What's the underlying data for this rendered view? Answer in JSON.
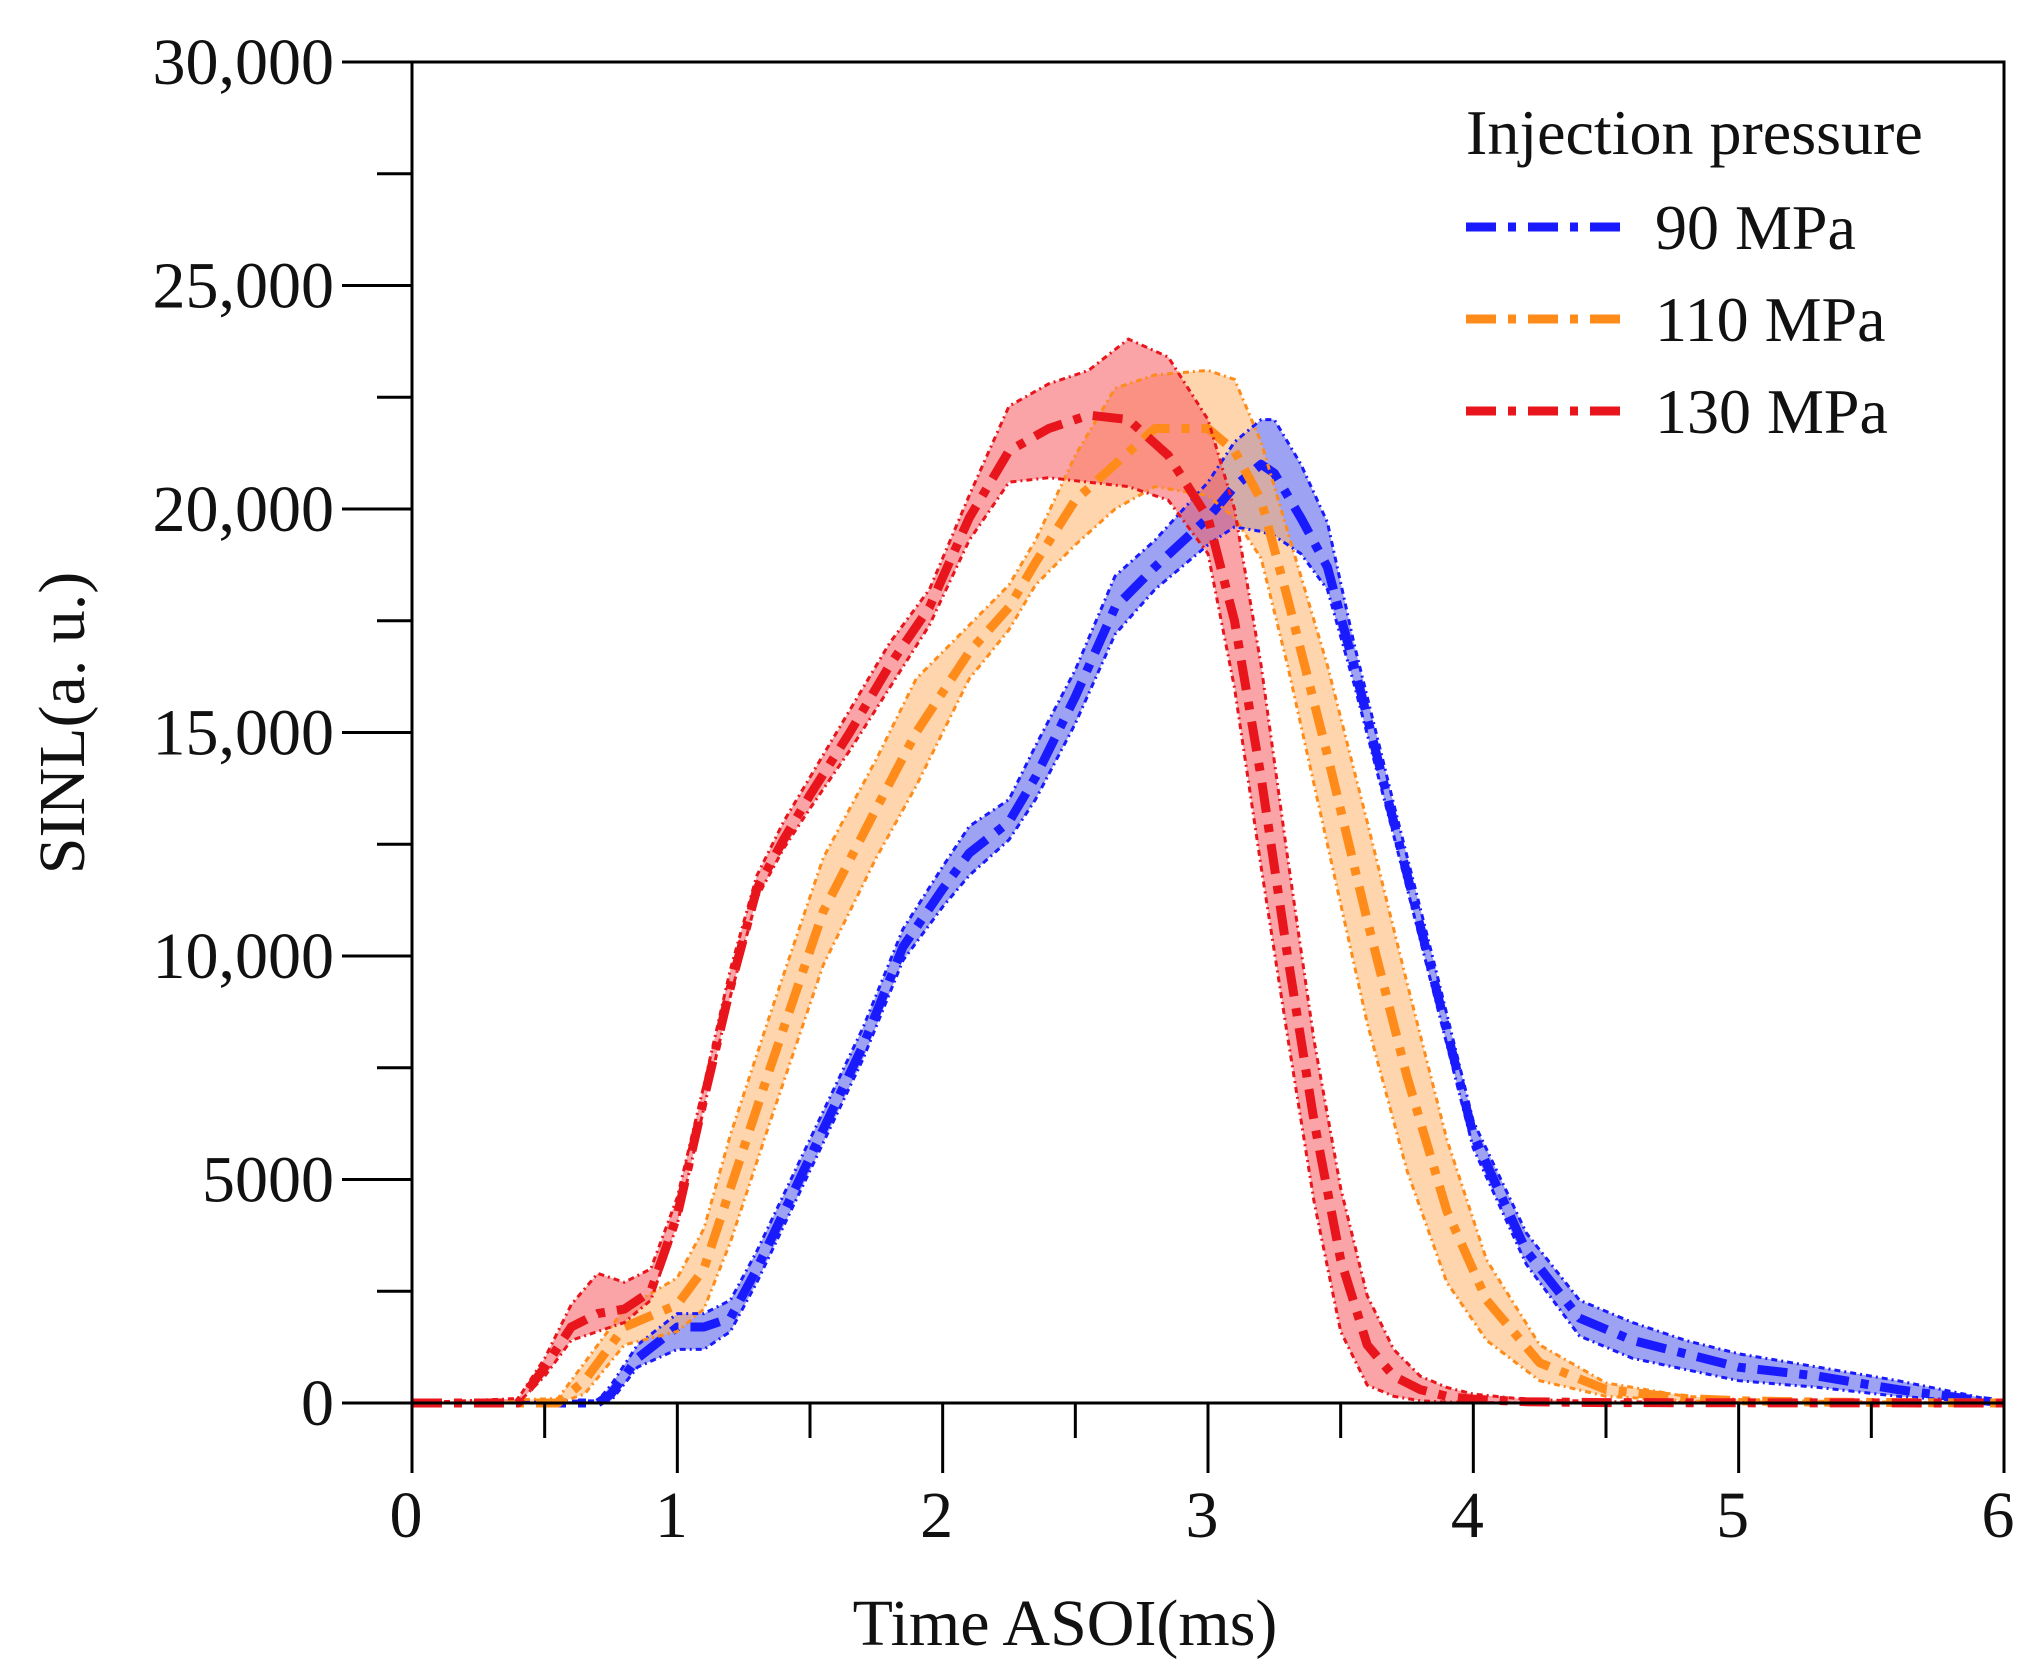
{
  "chart_data": {
    "type": "line",
    "title": "",
    "xlabel": "Time ASOI(ms)",
    "ylabel": "SINL(a. u.)",
    "xlim": [
      0,
      6
    ],
    "ylim": [
      0,
      30000
    ],
    "x_ticks": [
      0,
      1,
      2,
      3,
      4,
      5,
      6
    ],
    "x_tick_labels": [
      "0",
      "1",
      "2",
      "3",
      "4",
      "5",
      "6"
    ],
    "y_ticks": [
      0,
      5000,
      10000,
      15000,
      20000,
      25000,
      30000
    ],
    "y_tick_labels": [
      "0",
      "5000",
      "10,000",
      "15,000",
      "20,000",
      "25,000",
      "30,000"
    ],
    "legend_title": "Injection pressure",
    "legend_position": "top-right",
    "series": [
      {
        "name": "90 MPa",
        "color": "#1a1aff",
        "band_color": "#4d55e8",
        "x": [
          0,
          0.7,
          0.75,
          0.85,
          1.0,
          1.1,
          1.2,
          1.3,
          1.5,
          1.7,
          1.85,
          2.0,
          2.1,
          2.25,
          2.35,
          2.5,
          2.65,
          2.8,
          3.0,
          3.1,
          3.2,
          3.25,
          3.35,
          3.45,
          3.55,
          3.7,
          3.85,
          4.0,
          4.2,
          4.4,
          4.6,
          4.8,
          5.0,
          5.3,
          5.6,
          5.85,
          6.0
        ],
        "mean": [
          0,
          0,
          200,
          1000,
          1700,
          1700,
          1900,
          3000,
          5500,
          8000,
          10200,
          11500,
          12300,
          13000,
          14000,
          15800,
          17800,
          18700,
          19800,
          20500,
          21000,
          20800,
          19800,
          18700,
          16500,
          13000,
          9500,
          6000,
          3400,
          1900,
          1400,
          1100,
          800,
          600,
          300,
          100,
          0
        ],
        "lower": [
          0,
          0,
          50,
          800,
          1200,
          1200,
          1600,
          2700,
          5200,
          7700,
          9900,
          11100,
          11800,
          12600,
          13500,
          15200,
          17200,
          18200,
          19200,
          19600,
          19500,
          19400,
          19000,
          18200,
          16100,
          12700,
          9200,
          5700,
          3100,
          1500,
          1000,
          750,
          500,
          350,
          150,
          50,
          0
        ],
        "upper": [
          0,
          50,
          400,
          1300,
          2000,
          2000,
          2300,
          3400,
          5900,
          8400,
          10600,
          12000,
          12900,
          13500,
          14700,
          16400,
          18500,
          19300,
          20600,
          21500,
          22000,
          22000,
          21000,
          19700,
          17000,
          13400,
          9900,
          6300,
          3800,
          2300,
          1800,
          1400,
          1100,
          800,
          500,
          200,
          0
        ]
      },
      {
        "name": "110 MPa",
        "color": "#ff8c1a",
        "band_color": "#ffb36b",
        "x": [
          0,
          0.55,
          0.65,
          0.8,
          1.0,
          1.1,
          1.2,
          1.35,
          1.55,
          1.75,
          1.9,
          2.1,
          2.25,
          2.35,
          2.5,
          2.65,
          2.8,
          3.0,
          3.1,
          3.2,
          3.3,
          3.45,
          3.6,
          3.75,
          3.9,
          4.05,
          4.25,
          4.5,
          4.8,
          5.0,
          5.3,
          5.6,
          6.0
        ],
        "mean": [
          0,
          0,
          500,
          1700,
          2200,
          3000,
          4800,
          7500,
          11000,
          13300,
          15000,
          16800,
          17800,
          18800,
          20200,
          21000,
          21800,
          21800,
          21300,
          20200,
          18000,
          14500,
          10800,
          7300,
          4300,
          2300,
          900,
          300,
          100,
          50,
          20,
          10,
          0
        ],
        "lower": [
          0,
          0,
          200,
          1300,
          1600,
          2100,
          3600,
          6300,
          9800,
          12200,
          13800,
          16200,
          17300,
          18300,
          19200,
          20000,
          20500,
          20300,
          19800,
          18900,
          16500,
          12500,
          8500,
          5200,
          2700,
          1400,
          500,
          150,
          50,
          20,
          10,
          5,
          0
        ],
        "upper": [
          0,
          100,
          900,
          2100,
          2800,
          3900,
          6000,
          8700,
          12200,
          14400,
          16200,
          17400,
          18300,
          19300,
          21200,
          22700,
          23000,
          23100,
          22900,
          21500,
          19500,
          16500,
          13000,
          9400,
          5900,
          3200,
          1300,
          450,
          150,
          80,
          40,
          20,
          0
        ]
      },
      {
        "name": "130 MPa",
        "color": "#e8161c",
        "band_color": "#f55a5e",
        "x": [
          0,
          0.4,
          0.5,
          0.6,
          0.7,
          0.8,
          0.9,
          1.0,
          1.1,
          1.2,
          1.3,
          1.4,
          1.5,
          1.65,
          1.8,
          1.95,
          2.1,
          2.25,
          2.4,
          2.55,
          2.7,
          2.85,
          3.0,
          3.1,
          3.2,
          3.3,
          3.4,
          3.5,
          3.6,
          3.7,
          3.8,
          3.9,
          4.0,
          4.2,
          4.5,
          5.0,
          6.0
        ],
        "mean": [
          0,
          0,
          800,
          1700,
          2000,
          2100,
          2500,
          4200,
          6800,
          9300,
          11500,
          12600,
          13600,
          15000,
          16500,
          17800,
          19800,
          21300,
          21800,
          22100,
          22000,
          21200,
          19800,
          17500,
          14000,
          10000,
          6300,
          3200,
          1300,
          600,
          300,
          150,
          80,
          30,
          10,
          5,
          0
        ],
        "lower": [
          0,
          0,
          600,
          1400,
          1600,
          1800,
          2300,
          4000,
          6600,
          9100,
          11300,
          12400,
          13300,
          14600,
          16000,
          17400,
          19300,
          20600,
          20700,
          20600,
          20500,
          20200,
          19000,
          16000,
          12000,
          8200,
          4500,
          1600,
          400,
          150,
          50,
          20,
          10,
          5,
          0,
          0,
          0
        ],
        "upper": [
          0,
          100,
          1000,
          2200,
          2900,
          2700,
          3000,
          4600,
          7100,
          9700,
          11800,
          13000,
          14000,
          15500,
          17000,
          18200,
          20300,
          22300,
          22800,
          23100,
          23800,
          23400,
          22000,
          20000,
          16500,
          12200,
          8100,
          4800,
          2400,
          1200,
          600,
          350,
          200,
          80,
          30,
          10,
          0
        ]
      }
    ]
  }
}
